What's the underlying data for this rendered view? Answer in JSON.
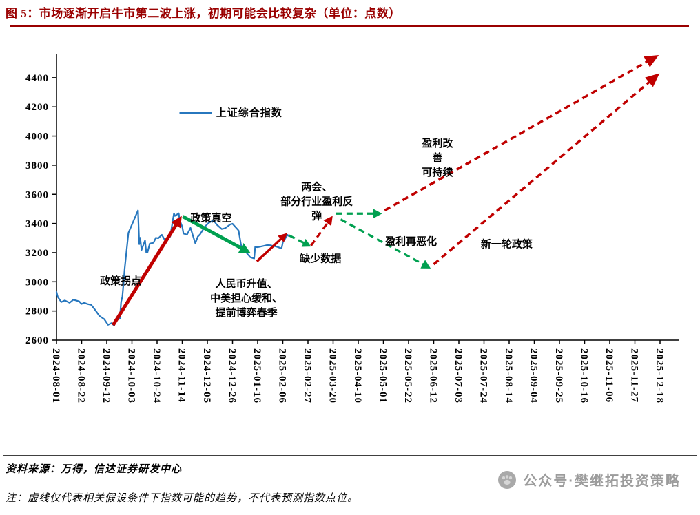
{
  "title": "图 5：市场逐渐开启牛市第二波上涨，初期可能会比较复杂（单位：点数）",
  "footer": {
    "source": "资料来源：万得，信达证券研发中心",
    "note": "注：虚线仅代表相关假设条件下指数可能的趋势，不代表预测指数点位。",
    "watermark": "公众号·樊继拓投资策略"
  },
  "colors": {
    "title_red": "#9A0000",
    "line_blue": "#2777BE",
    "arrow_red": "#C00000",
    "arrow_green": "#00A050",
    "axis_black": "#000000",
    "watermark_gray": "#9C9C9C"
  },
  "chart_data": {
    "type": "line",
    "title": "",
    "xlabel": "",
    "ylabel": "",
    "ylim": [
      2600,
      4560
    ],
    "grid": false,
    "legend_position": "upper-left-inside",
    "legend": {
      "label": "上证综合指数"
    },
    "y_ticks": [
      2600,
      2800,
      3000,
      3200,
      3400,
      3600,
      3800,
      4000,
      4200,
      4400
    ],
    "x_ticks": [
      "2024-08-01",
      "2024-08-22",
      "2024-09-12",
      "2024-10-03",
      "2024-10-24",
      "2024-11-14",
      "2024-12-05",
      "2024-12-26",
      "2025-01-16",
      "2025-02-06",
      "2025-02-27",
      "2025-03-20",
      "2025-04-10",
      "2025-05-01",
      "2025-05-22",
      "2025-06-12",
      "2025-07-03",
      "2025-07-24",
      "2025-08-14",
      "2025-09-04",
      "2025-09-25",
      "2025-10-16",
      "2025-11-06",
      "2025-11-27",
      "2025-12-18"
    ],
    "x_unit": "tick index, 1 tick = 21 days",
    "series": [
      {
        "name": "上证综合指数",
        "color": "#2777BE",
        "points": [
          [
            0,
            2930
          ],
          [
            0.05,
            2897
          ],
          [
            0.19,
            2861
          ],
          [
            0.33,
            2872
          ],
          [
            0.52,
            2856
          ],
          [
            0.67,
            2877
          ],
          [
            0.9,
            2866
          ],
          [
            1,
            2848
          ],
          [
            1.1,
            2856
          ],
          [
            1.24,
            2847
          ],
          [
            1.38,
            2842
          ],
          [
            1.52,
            2811
          ],
          [
            1.71,
            2766
          ],
          [
            1.9,
            2744
          ],
          [
            2.05,
            2705
          ],
          [
            2.19,
            2717
          ],
          [
            2.29,
            2700
          ],
          [
            2.38,
            2736
          ],
          [
            2.52,
            2749
          ],
          [
            2.57,
            2863
          ],
          [
            2.62,
            2896
          ],
          [
            2.67,
            3000
          ],
          [
            2.71,
            3088
          ],
          [
            2.86,
            3336
          ],
          [
            3.24,
            3490
          ],
          [
            3.29,
            3258
          ],
          [
            3.33,
            3302
          ],
          [
            3.38,
            3218
          ],
          [
            3.52,
            3284
          ],
          [
            3.57,
            3201
          ],
          [
            3.62,
            3202
          ],
          [
            3.71,
            3262
          ],
          [
            3.86,
            3268
          ],
          [
            3.95,
            3302
          ],
          [
            4.05,
            3299
          ],
          [
            4.19,
            3322
          ],
          [
            4.33,
            3280
          ],
          [
            4.52,
            3310
          ],
          [
            4.67,
            3470
          ],
          [
            4.71,
            3452
          ],
          [
            4.86,
            3470
          ],
          [
            4.9,
            3421
          ],
          [
            5,
            3379
          ],
          [
            5.05,
            3331
          ],
          [
            5.19,
            3323
          ],
          [
            5.33,
            3370
          ],
          [
            5.52,
            3264
          ],
          [
            5.62,
            3310
          ],
          [
            5.71,
            3326
          ],
          [
            5.9,
            3379
          ],
          [
            6.05,
            3404
          ],
          [
            6.24,
            3422
          ],
          [
            6.38,
            3391
          ],
          [
            6.57,
            3362
          ],
          [
            6.71,
            3368
          ],
          [
            6.9,
            3393
          ],
          [
            7,
            3398
          ],
          [
            7.24,
            3352
          ],
          [
            7.33,
            3263
          ],
          [
            7.38,
            3212
          ],
          [
            7.52,
            3206
          ],
          [
            7.71,
            3168
          ],
          [
            7.86,
            3160
          ],
          [
            7.9,
            3240
          ],
          [
            8,
            3237
          ],
          [
            8.19,
            3244
          ],
          [
            8.38,
            3252
          ],
          [
            8.52,
            3250
          ],
          [
            8.76,
            3241
          ],
          [
            8.95,
            3229
          ],
          [
            9,
            3270
          ],
          [
            9.19,
            3322
          ],
          [
            9.24,
            3313
          ]
        ]
      }
    ],
    "arrows": [
      {
        "name": "policy-turning-point-arrow",
        "color": "red",
        "dash": false,
        "from": [
          2.25,
          2703
        ],
        "to": [
          4.98,
          3452
        ],
        "width": 5,
        "head": [
          16,
          8
        ]
      },
      {
        "name": "policy-vacuum-arrow",
        "color": "green",
        "dash": false,
        "from": [
          5.02,
          3448
        ],
        "to": [
          7.72,
          3197
        ],
        "width": 5,
        "head": [
          16,
          8
        ]
      },
      {
        "name": "spring-rally-arrow",
        "color": "red",
        "dash": false,
        "from": [
          7.97,
          3140
        ],
        "to": [
          9.18,
          3335
        ],
        "width": 3.5,
        "head": [
          13,
          6.5
        ]
      },
      {
        "name": "data-gap-arrow",
        "color": "green",
        "dash": true,
        "from": [
          9.25,
          3318
        ],
        "to": [
          10.12,
          3242
        ],
        "width": 3.2,
        "head": [
          12,
          6.5
        ]
      },
      {
        "name": "two-sessions-rebound-arrow",
        "color": "red",
        "dash": true,
        "from": [
          10.12,
          3248
        ],
        "to": [
          10.98,
          3452
        ],
        "width": 3.2,
        "head": [
          13,
          7
        ]
      },
      {
        "name": "earnings-flat-arrow",
        "color": "green",
        "dash": true,
        "from": [
          11.12,
          3468
        ],
        "to": [
          12.95,
          3468
        ],
        "width": 3.2,
        "head": [
          13,
          7
        ]
      },
      {
        "name": "earnings-deteriorate-arrow",
        "color": "green",
        "dash": true,
        "from": [
          11.3,
          3428
        ],
        "to": [
          14.88,
          3092
        ],
        "width": 3.2,
        "head": [
          13,
          7
        ]
      },
      {
        "name": "earnings-improve-arrow",
        "color": "red",
        "dash": true,
        "from": [
          13.05,
          3490
        ],
        "to": [
          23.95,
          4555
        ],
        "width": 3.5,
        "head": [
          20,
          9
        ]
      },
      {
        "name": "new-policy-round-arrow",
        "color": "red",
        "dash": true,
        "from": [
          15.0,
          3120
        ],
        "to": [
          23.98,
          4430
        ],
        "width": 3.5,
        "head": [
          20,
          9
        ]
      }
    ],
    "annotations": [
      {
        "text": "政策拐点",
        "color": "red",
        "x": 2.55,
        "y": 3005
      },
      {
        "text": "政策真空",
        "color": "green",
        "x": 6.15,
        "y": 3438
      },
      {
        "text": "人民币升值、\n中美担心缓和、\n提前博弈春季",
        "color": "red",
        "x": 7.55,
        "y": 2888
      },
      {
        "text": "缺少数据",
        "color": "green",
        "x": 10.5,
        "y": 3160
      },
      {
        "text": "两会、\n部分行业盈利反\n弹",
        "color": "red",
        "x": 10.35,
        "y": 3552
      },
      {
        "text": "盈利再恶化",
        "color": "green",
        "x": 14.1,
        "y": 3278
      },
      {
        "text": "盈利改\n善\n可持续",
        "color": "red",
        "x": 15.15,
        "y": 3852
      },
      {
        "text": "新一轮政策",
        "color": "red",
        "x": 17.9,
        "y": 3258
      }
    ]
  }
}
